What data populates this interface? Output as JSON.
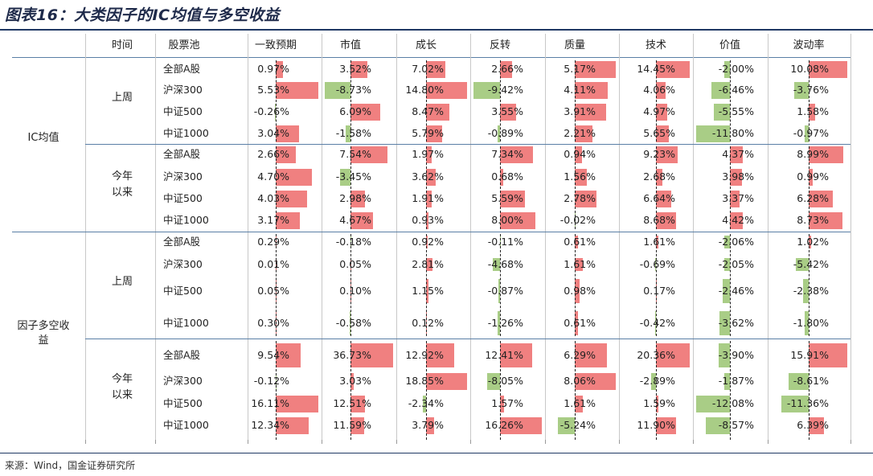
{
  "title": "图表16：大类因子的IC均值与多空收益",
  "source": "来源：Wind，国金证券研究所",
  "headers": {
    "time": "时间",
    "pool": "股票池",
    "factors": [
      "一致预期",
      "市值",
      "成长",
      "反转",
      "质量",
      "技术",
      "价值",
      "波动率"
    ]
  },
  "sections": [
    {
      "label": "IC均值",
      "label_lines": [
        "IC均值"
      ],
      "periods": [
        {
          "label_lines": [
            "上周"
          ],
          "rows": [
            {
              "pool": "全部A股",
              "values": [
                "0.97%",
                "3.52%",
                "7.02%",
                "2.66%",
                "5.17%",
                "14.45%",
                "-2.00%",
                "10.08%"
              ]
            },
            {
              "pool": "沪深300",
              "values": [
                "5.53%",
                "-8.73%",
                "14.80%",
                "-9.42%",
                "4.11%",
                "4.06%",
                "-6.46%",
                "-3.76%"
              ]
            },
            {
              "pool": "中证500",
              "values": [
                "-0.26%",
                "6.09%",
                "8.47%",
                "3.55%",
                "3.91%",
                "4.97%",
                "-5.55%",
                "1.58%"
              ]
            },
            {
              "pool": "中证1000",
              "values": [
                "3.04%",
                "-1.58%",
                "5.79%",
                "-0.89%",
                "2.21%",
                "5.65%",
                "-11.80%",
                "-0.97%"
              ]
            }
          ]
        },
        {
          "label_lines": [
            "今年",
            "以来"
          ],
          "rows": [
            {
              "pool": "全部A股",
              "values": [
                "2.66%",
                "7.54%",
                "1.97%",
                "7.34%",
                "0.94%",
                "9.23%",
                "4.37%",
                "8.99%"
              ]
            },
            {
              "pool": "沪深300",
              "values": [
                "4.70%",
                "-3.45%",
                "3.62%",
                "0.68%",
                "1.56%",
                "2.68%",
                "3.98%",
                "0.99%"
              ]
            },
            {
              "pool": "中证500",
              "values": [
                "4.03%",
                "2.98%",
                "1.91%",
                "5.59%",
                "2.78%",
                "6.64%",
                "3.37%",
                "6.28%"
              ]
            },
            {
              "pool": "中证1000",
              "values": [
                "3.17%",
                "4.67%",
                "0.93%",
                "8.00%",
                "-0.02%",
                "8.68%",
                "4.42%",
                "8.73%"
              ]
            }
          ]
        }
      ]
    },
    {
      "label": "因子多空收益",
      "label_lines": [
        "因子多空收",
        "益"
      ],
      "periods": [
        {
          "label_lines": [
            "上周"
          ],
          "rows": [
            {
              "pool": "全部A股",
              "values": [
                "0.29%",
                "-0.18%",
                "0.92%",
                "-0.11%",
                "0.61%",
                "1.61%",
                "-2.06%",
                "1.02%"
              ]
            },
            {
              "pool": "沪深300",
              "values": [
                "0.01%",
                "0.05%",
                "2.81%",
                "-4.68%",
                "1.61%",
                "-0.69%",
                "-2.05%",
                "-5.42%"
              ]
            },
            {
              "pool": "中证500",
              "values": [
                "0.05%",
                "0.10%",
                "1.15%",
                "-0.87%",
                "0.98%",
                "0.17%",
                "-2.46%",
                "-2.38%"
              ]
            },
            {
              "pool": "中证1000",
              "values": [
                "0.30%",
                "-0.58%",
                "0.12%",
                "-1.26%",
                "0.61%",
                "-0.42%",
                "-3.62%",
                "-1.80%"
              ]
            }
          ]
        },
        {
          "label_lines": [
            "今年",
            "以来"
          ],
          "rows": [
            {
              "pool": "全部A股",
              "values": [
                "9.54%",
                "36.73%",
                "12.92%",
                "12.41%",
                "6.29%",
                "20.36%",
                "-3.90%",
                "15.91%"
              ]
            },
            {
              "pool": "沪深300",
              "values": [
                "-0.12%",
                "3.03%",
                "18.85%",
                "-8.05%",
                "8.06%",
                "-2.89%",
                "-1.87%",
                "-8.61%"
              ]
            },
            {
              "pool": "中证500",
              "values": [
                "16.11%",
                "12.51%",
                "-2.34%",
                "1.57%",
                "1.61%",
                "1.59%",
                "-12.08%",
                "-11.36%"
              ]
            },
            {
              "pool": "中证1000",
              "values": [
                "12.34%",
                "11.59%",
                "3.79%",
                "16.26%",
                "-5.24%",
                "11.90%",
                "-8.57%",
                "6.39%"
              ]
            }
          ]
        }
      ]
    }
  ],
  "colors": {
    "positive": "#f08080",
    "negative": "#a9cd86",
    "rule": "#1f3864"
  }
}
